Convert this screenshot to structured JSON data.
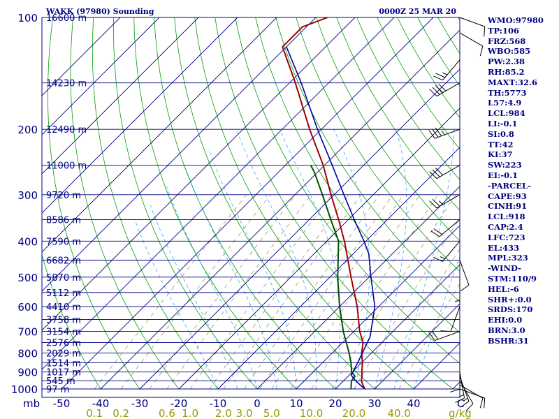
{
  "header": {
    "station_title": "WAKK (97980) Sounding",
    "valid_time": "0000Z 25 MAR 20"
  },
  "pressure_axis": {
    "unit": "mb",
    "ticks": [
      100,
      200,
      300,
      400,
      500,
      600,
      700,
      800,
      900,
      1000
    ]
  },
  "height_labels": [
    {
      "p": 100,
      "label": "16600 m"
    },
    {
      "p": 150,
      "label": "14230 m"
    },
    {
      "p": 200,
      "label": "12490 m"
    },
    {
      "p": 250,
      "label": "11000 m"
    },
    {
      "p": 300,
      "label": "9720 m"
    },
    {
      "p": 350,
      "label": "8586 m"
    },
    {
      "p": 400,
      "label": "7590 m"
    },
    {
      "p": 450,
      "label": "6682 m"
    },
    {
      "p": 500,
      "label": "5870 m"
    },
    {
      "p": 550,
      "label": "5112 m"
    },
    {
      "p": 600,
      "label": "4410 m"
    },
    {
      "p": 650,
      "label": "3758 m"
    },
    {
      "p": 700,
      "label": "3154 m"
    },
    {
      "p": 750,
      "label": "2576 m"
    },
    {
      "p": 800,
      "label": "2029 m"
    },
    {
      "p": 850,
      "label": "1514 m"
    },
    {
      "p": 900,
      "label": "1017 m"
    },
    {
      "p": 950,
      "label": "545 m"
    },
    {
      "p": 1000,
      "label": "97 m"
    }
  ],
  "temperature_axis": {
    "unit": "C",
    "ticks": [
      -50,
      -40,
      -30,
      -20,
      -10,
      0,
      10,
      20,
      30,
      40
    ]
  },
  "mixing_ratio_axis": {
    "unit": "g/kg",
    "ticks": [
      {
        "w": 0.1,
        "label": "0.1"
      },
      {
        "w": 0.2,
        "label": "0.2"
      },
      {
        "w": 0.6,
        "label": "0.6"
      },
      {
        "w": 1.0,
        "label": "1.0"
      },
      {
        "w": 2.0,
        "label": "2.0"
      },
      {
        "w": 3.0,
        "label": "3.0"
      },
      {
        "w": 5.0,
        "label": "5.0"
      },
      {
        "w": 10.0,
        "label": "10.0"
      },
      {
        "w": 20.0,
        "label": "20.0"
      },
      {
        "w": 40.0,
        "label": "40.0"
      }
    ]
  },
  "indices": [
    "WMO:97980",
    "TP:106",
    "FRZ:568",
    "WBO:585",
    "PW:2.38",
    "RH:85.2",
    "MAXT:32.6",
    "TH:5773",
    "L57:4.9",
    "LCL:984",
    "LI:-0.1",
    "SI:0.8",
    "TT:42",
    "KI:37",
    "SW:223",
    "EI:-0.1",
    "-PARCEL-",
    "CAPE:93",
    "CINH:91",
    "LCL:918",
    "CAP:2.4",
    "LFC:723",
    "EL:433",
    "MPL:323",
    "-WIND-",
    "STM:110/9",
    "HEL:-6",
    "SHR+:0.0",
    "SRDS:170",
    "EHI:0.0",
    "BRN:3.0",
    "BSHR:31"
  ],
  "colors": {
    "frame": "#000080",
    "isobar": "#000080",
    "isotherm": "#000080",
    "dry_adiabat": "#00a000",
    "moist_adiabat": "#33aaff",
    "mixing_ratio": "#999966",
    "temperature": "#a00000",
    "dewpoint": "#005000",
    "parcel": "#0000a0",
    "axis_text": "#000080",
    "mix_text": "#999900",
    "wind": "#000000"
  },
  "chart_data": {
    "type": "skew-t log-p",
    "pressure_range_mb": [
      1000,
      100
    ],
    "temperature_profile": [
      {
        "p": 1000,
        "t": 27.5
      },
      {
        "p": 975,
        "t": 26.0
      },
      {
        "p": 950,
        "t": 24.5
      },
      {
        "p": 925,
        "t": 23.6
      },
      {
        "p": 900,
        "t": 22.4
      },
      {
        "p": 850,
        "t": 20.2
      },
      {
        "p": 800,
        "t": 17.5
      },
      {
        "p": 750,
        "t": 15.2
      },
      {
        "p": 700,
        "t": 11.5
      },
      {
        "p": 600,
        "t": 4.5
      },
      {
        "p": 500,
        "t": -4.6
      },
      {
        "p": 400,
        "t": -15.5
      },
      {
        "p": 350,
        "t": -22.5
      },
      {
        "p": 300,
        "t": -30.8
      },
      {
        "p": 250,
        "t": -40.3
      },
      {
        "p": 200,
        "t": -53.0
      },
      {
        "p": 150,
        "t": -68.5
      },
      {
        "p": 120,
        "t": -81.0
      },
      {
        "p": 106,
        "t": -81.0
      },
      {
        "p": 100,
        "t": -77.0
      }
    ],
    "dewpoint_profile": [
      {
        "p": 1000,
        "td": 24.0
      },
      {
        "p": 975,
        "td": 23.0
      },
      {
        "p": 950,
        "td": 22.0
      },
      {
        "p": 925,
        "td": 21.8
      },
      {
        "p": 900,
        "td": 19.8
      },
      {
        "p": 850,
        "td": 17.3
      },
      {
        "p": 800,
        "td": 14.3
      },
      {
        "p": 700,
        "td": 7.3
      },
      {
        "p": 600,
        "td": 0.0
      },
      {
        "p": 500,
        "td": -8.0
      },
      {
        "p": 400,
        "td": -17.0
      },
      {
        "p": 350,
        "td": -24.5
      },
      {
        "p": 300,
        "td": -33.0
      },
      {
        "p": 260,
        "td": -41.0
      },
      {
        "p": 250,
        "td": -43.5
      }
    ],
    "parcel_profile": [
      {
        "p": 1000,
        "t": 27.5
      },
      {
        "p": 950,
        "t": 23.0
      },
      {
        "p": 918,
        "t": 20.5
      },
      {
        "p": 850,
        "t": 19.0
      },
      {
        "p": 723,
        "t": 15.5
      },
      {
        "p": 600,
        "t": 9.0
      },
      {
        "p": 500,
        "t": 0.5
      },
      {
        "p": 433,
        "t": -6.0
      },
      {
        "p": 400,
        "t": -10.5
      },
      {
        "p": 350,
        "t": -18.5
      },
      {
        "p": 300,
        "t": -27.5
      },
      {
        "p": 250,
        "t": -38.0
      },
      {
        "p": 200,
        "t": -51.0
      },
      {
        "p": 150,
        "t": -67.0
      },
      {
        "p": 120,
        "t": -80.0
      }
    ],
    "wind_barbs": [
      {
        "p": 1000,
        "dir": 110,
        "spd": 10
      },
      {
        "p": 975,
        "dir": 120,
        "spd": 10
      },
      {
        "p": 950,
        "dir": 150,
        "spd": 10
      },
      {
        "p": 925,
        "dir": 160,
        "spd": 15
      },
      {
        "p": 900,
        "dir": 170,
        "spd": 15
      },
      {
        "p": 850,
        "dir": 180,
        "spd": 10
      },
      {
        "p": 700,
        "dir": 250,
        "spd": 20
      },
      {
        "p": 600,
        "dir": 200,
        "spd": 10
      },
      {
        "p": 500,
        "dir": 180,
        "spd": 5
      },
      {
        "p": 450,
        "dir": 160,
        "spd": 10
      },
      {
        "p": 400,
        "dir": 220,
        "spd": 15
      },
      {
        "p": 350,
        "dir": 230,
        "spd": 20
      },
      {
        "p": 300,
        "dir": 240,
        "spd": 25
      },
      {
        "p": 250,
        "dir": 240,
        "spd": 30
      },
      {
        "p": 200,
        "dir": 250,
        "spd": 35
      },
      {
        "p": 150,
        "dir": 240,
        "spd": 40
      },
      {
        "p": 130,
        "dir": 220,
        "spd": 25
      },
      {
        "p": 110,
        "dir": 120,
        "spd": 10
      },
      {
        "p": 100,
        "dir": 110,
        "spd": 10
      }
    ],
    "grid": true
  }
}
